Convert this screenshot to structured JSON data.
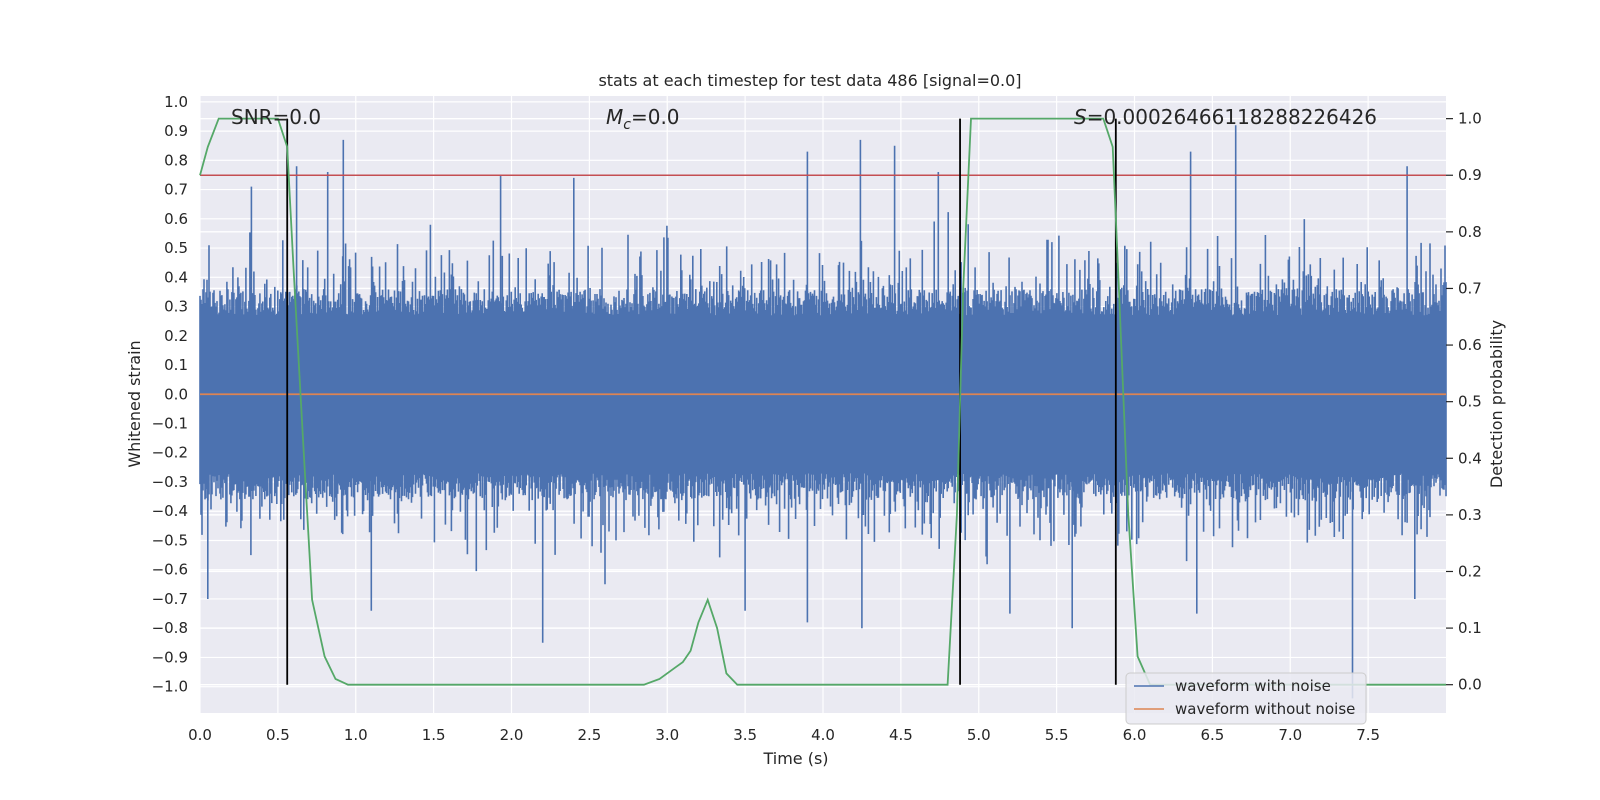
{
  "chart_data": {
    "type": "line",
    "title": "stats at each timestep for test data 486 [signal=0.0]",
    "xlabel": "Time (s)",
    "ylabel": "Whitened strain",
    "y2label": "Detection probability",
    "xlim": [
      0.0,
      8.0
    ],
    "ylim": [
      -1.09,
      1.02
    ],
    "y2lim": [
      -0.05,
      1.04
    ],
    "xticks": [
      "0.0",
      "0.5",
      "1.0",
      "1.5",
      "2.0",
      "2.5",
      "3.0",
      "3.5",
      "4.0",
      "4.5",
      "5.0",
      "5.5",
      "6.0",
      "6.5",
      "7.0",
      "7.5"
    ],
    "yticks": [
      "1.0",
      "0.9",
      "0.8",
      "0.7",
      "0.6",
      "0.5",
      "0.4",
      "0.3",
      "0.2",
      "0.1",
      "0.0",
      "−0.1",
      "−0.2",
      "−0.3",
      "−0.4",
      "−0.5",
      "−0.6",
      "−0.7",
      "−0.8",
      "−0.9",
      "−1.0"
    ],
    "y2ticks": [
      "1.0",
      "0.9",
      "0.8",
      "0.7",
      "0.6",
      "0.5",
      "0.4",
      "0.3",
      "0.2",
      "0.1",
      "0.0"
    ],
    "annotations": {
      "snr_label": "SNR=0.0",
      "mc_prefix": "M",
      "mc_sub": "c",
      "mc_value": "=0.0",
      "s_prefix": "S",
      "s_value": "=0.00026466118288226426"
    },
    "threshold": 0.9,
    "vertical_lines": [
      0.56,
      4.88,
      5.88
    ],
    "noise_spikes": {
      "positive": [
        [
          0.33,
          0.71
        ],
        [
          0.62,
          0.78
        ],
        [
          0.82,
          0.76
        ],
        [
          0.92,
          0.87
        ],
        [
          1.93,
          0.75
        ],
        [
          2.4,
          0.74
        ],
        [
          3.9,
          0.83
        ],
        [
          4.24,
          0.87
        ],
        [
          4.46,
          0.85
        ],
        [
          4.74,
          0.76
        ],
        [
          6.36,
          0.83
        ],
        [
          6.65,
          0.92
        ],
        [
          7.75,
          0.78
        ]
      ],
      "negative": [
        [
          0.05,
          -0.7
        ],
        [
          1.1,
          -0.74
        ],
        [
          2.2,
          -0.85
        ],
        [
          2.6,
          -0.65
        ],
        [
          3.5,
          -0.74
        ],
        [
          3.9,
          -0.78
        ],
        [
          4.25,
          -0.8
        ],
        [
          5.2,
          -0.75
        ],
        [
          5.6,
          -0.8
        ],
        [
          6.4,
          -0.75
        ],
        [
          7.4,
          -1.04
        ],
        [
          7.8,
          -0.7
        ]
      ]
    },
    "series": [
      {
        "name": "waveform with noise",
        "color": "#4c72b0",
        "axis": "left",
        "envelope": 0.36
      },
      {
        "name": "waveform without noise",
        "color": "#dd8452",
        "axis": "left",
        "values_constant": 0.0
      },
      {
        "name": "detection probability",
        "color": "#55a868",
        "axis": "right",
        "x": [
          0.0,
          0.05,
          0.12,
          0.2,
          0.3,
          0.4,
          0.5,
          0.56,
          0.6,
          0.66,
          0.72,
          0.8,
          0.87,
          0.95,
          1.1,
          2.7,
          2.85,
          2.95,
          3.05,
          3.1,
          3.15,
          3.2,
          3.26,
          3.32,
          3.38,
          3.45,
          3.6,
          4.5,
          4.8,
          4.86,
          4.9,
          4.95,
          5.8,
          5.86,
          5.9,
          5.96,
          6.02,
          6.1,
          8.0
        ],
        "y": [
          0.9,
          0.95,
          1.0,
          1.0,
          1.0,
          1.0,
          1.0,
          0.95,
          0.74,
          0.44,
          0.15,
          0.05,
          0.01,
          0.0,
          0.0,
          0.0,
          0.0,
          0.01,
          0.03,
          0.04,
          0.06,
          0.11,
          0.15,
          0.1,
          0.02,
          0.0,
          0.0,
          0.0,
          0.0,
          0.3,
          0.7,
          1.0,
          1.0,
          0.95,
          0.7,
          0.3,
          0.05,
          0.0,
          0.0
        ]
      }
    ]
  }
}
